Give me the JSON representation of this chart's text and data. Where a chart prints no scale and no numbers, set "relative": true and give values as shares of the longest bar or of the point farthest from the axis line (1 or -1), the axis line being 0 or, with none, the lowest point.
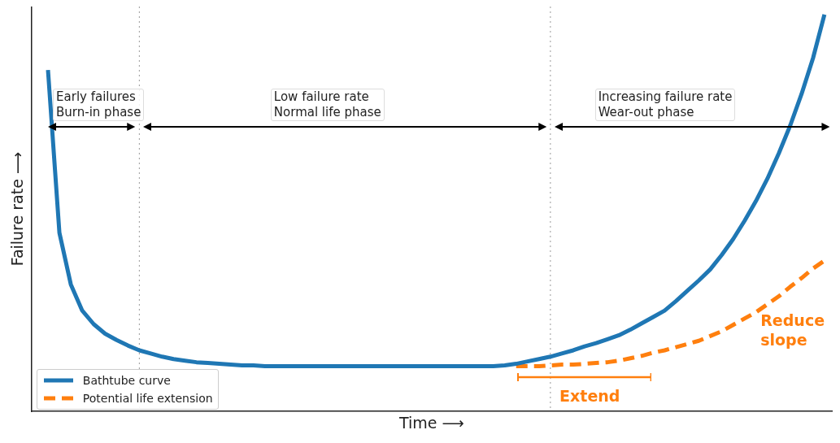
{
  "chart_data": {
    "type": "line",
    "relative": true,
    "xlabel": "Time ⟶",
    "ylabel": "Failure rate ⟶",
    "legend": "bottom left",
    "categories": [
      null,
      null,
      null,
      null,
      null,
      null,
      null,
      null,
      null,
      null,
      null,
      null,
      null,
      null,
      null,
      null,
      null,
      null,
      null,
      null,
      null,
      null,
      null,
      null,
      null,
      null,
      null,
      null,
      null,
      null,
      null,
      null,
      null,
      null,
      null,
      null,
      null,
      null,
      null,
      null,
      null,
      null,
      null,
      null,
      null,
      null,
      null,
      null,
      null,
      null,
      null,
      null,
      null,
      null,
      null,
      null,
      null,
      null,
      null,
      null,
      null,
      null,
      null,
      null,
      null,
      null,
      null,
      null,
      null
    ],
    "series": [
      {
        "name": "Bathtube curve",
        "color": "#1f77b4",
        "line_style": "solid",
        "values": [
          0.86,
          0.45,
          0.32,
          0.254,
          0.22,
          0.196,
          0.18,
          0.166,
          0.154,
          0.146,
          0.138,
          0.132,
          0.128,
          0.124,
          0.122,
          0.12,
          0.118,
          0.116,
          0.116,
          0.114,
          0.114,
          0.114,
          0.114,
          0.114,
          0.114,
          0.114,
          0.114,
          0.114,
          0.114,
          0.114,
          0.114,
          0.114,
          0.114,
          0.114,
          0.114,
          0.114,
          0.114,
          0.114,
          0.114,
          0.114,
          0.116,
          0.12,
          0.126,
          0.132,
          0.138,
          0.146,
          0.154,
          0.164,
          0.172,
          0.182,
          0.192,
          0.206,
          0.222,
          0.238,
          0.254,
          0.278,
          0.304,
          0.33,
          0.358,
          0.394,
          0.434,
          0.48,
          0.53,
          0.586,
          0.65,
          0.72,
          0.8,
          0.89,
          1
        ]
      },
      {
        "name": "Potential life extension",
        "color": "#ff7f0e",
        "line_style": "dashed",
        "values": [
          null,
          null,
          null,
          null,
          null,
          null,
          null,
          null,
          null,
          null,
          null,
          null,
          null,
          null,
          null,
          null,
          null,
          null,
          null,
          null,
          null,
          null,
          null,
          null,
          null,
          null,
          null,
          null,
          null,
          null,
          null,
          null,
          null,
          null,
          null,
          null,
          null,
          null,
          null,
          null,
          null,
          0.114,
          0.114,
          0.114,
          0.116,
          0.118,
          0.118,
          0.12,
          0.122,
          0.124,
          0.128,
          0.134,
          0.14,
          0.148,
          0.154,
          0.162,
          0.17,
          0.178,
          0.19,
          0.202,
          0.218,
          0.234,
          0.25,
          0.27,
          0.29,
          0.314,
          0.336,
          0.36,
          0.38
        ]
      }
    ],
    "annotations": [
      "Early failures\nBurn-in phase",
      "Low failure rate\nNormal life phase",
      "Increasing failure rate\nWear-out phase",
      "Extend",
      "Reduce\nslope"
    ]
  }
}
